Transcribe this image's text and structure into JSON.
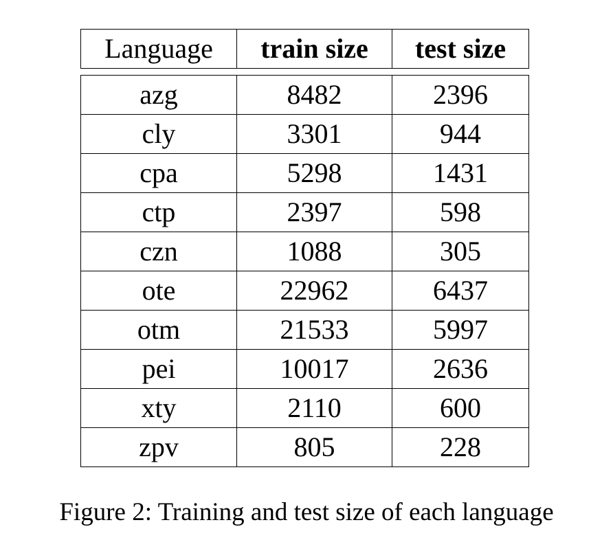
{
  "table": {
    "headers": [
      "Language",
      "train size",
      "test size"
    ],
    "rows": [
      {
        "language": "azg",
        "train": "8482",
        "test": "2396"
      },
      {
        "language": "cly",
        "train": "3301",
        "test": "944"
      },
      {
        "language": "cpa",
        "train": "5298",
        "test": "1431"
      },
      {
        "language": "ctp",
        "train": "2397",
        "test": "598"
      },
      {
        "language": "czn",
        "train": "1088",
        "test": "305"
      },
      {
        "language": "ote",
        "train": "22962",
        "test": "6437"
      },
      {
        "language": "otm",
        "train": "21533",
        "test": "5997"
      },
      {
        "language": "pei",
        "train": "10017",
        "test": "2636"
      },
      {
        "language": "xty",
        "train": "2110",
        "test": "600"
      },
      {
        "language": "zpv",
        "train": "805",
        "test": "228"
      }
    ]
  },
  "caption": "Figure 2: Training and test size of each language"
}
